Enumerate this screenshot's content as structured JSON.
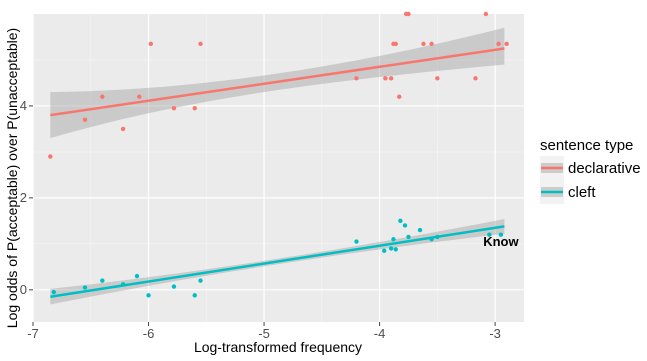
{
  "chart_data": {
    "type": "scatter",
    "xlabel": "Log-transformed frequency",
    "ylabel": "Log odds of P(acceptable) over P(unacceptable)",
    "xlim": [
      -7,
      -2.75
    ],
    "ylim": [
      -0.7,
      6
    ],
    "x_ticks": [
      -7,
      -6,
      -5,
      -4,
      -3
    ],
    "y_ticks": [
      0,
      2,
      4
    ],
    "grid": true,
    "legend": {
      "title": "sentence type",
      "placement": "right",
      "entries": [
        "declarative",
        "cleft"
      ]
    },
    "annotations": [
      {
        "text": "Know",
        "x": -2.95,
        "y": 0.95
      }
    ],
    "series": [
      {
        "name": "declarative",
        "color": "#f8766d",
        "points": [
          [
            -6.85,
            2.9
          ],
          [
            -6.55,
            3.7
          ],
          [
            -6.4,
            4.2
          ],
          [
            -6.22,
            3.5
          ],
          [
            -6.08,
            4.2
          ],
          [
            -5.98,
            5.35
          ],
          [
            -5.78,
            3.95
          ],
          [
            -5.6,
            3.95
          ],
          [
            -5.55,
            5.35
          ],
          [
            -4.2,
            4.6
          ],
          [
            -3.95,
            4.6
          ],
          [
            -3.9,
            4.6
          ],
          [
            -3.88,
            5.35
          ],
          [
            -3.86,
            5.35
          ],
          [
            -3.83,
            4.2
          ],
          [
            -3.77,
            6.0
          ],
          [
            -3.75,
            6.0
          ],
          [
            -3.62,
            5.35
          ],
          [
            -3.55,
            5.35
          ],
          [
            -3.5,
            4.6
          ],
          [
            -3.17,
            4.6
          ],
          [
            -3.08,
            6.0
          ],
          [
            -2.97,
            5.35
          ],
          [
            -2.9,
            5.35
          ]
        ],
        "fit": {
          "x": [
            -6.85,
            -2.92
          ],
          "y": [
            3.8,
            5.25
          ]
        },
        "ci_lower": [
          3.3,
          4.9
        ],
        "ci_upper": [
          4.3,
          5.7
        ],
        "ci_mid_width": 0.18
      },
      {
        "name": "cleft",
        "color": "#00bfc4",
        "points": [
          [
            -6.82,
            -0.05
          ],
          [
            -6.55,
            0.05
          ],
          [
            -6.4,
            0.2
          ],
          [
            -6.22,
            0.12
          ],
          [
            -6.1,
            0.3
          ],
          [
            -6.0,
            -0.12
          ],
          [
            -5.78,
            0.07
          ],
          [
            -5.6,
            -0.12
          ],
          [
            -5.55,
            0.2
          ],
          [
            -4.2,
            1.05
          ],
          [
            -3.96,
            0.85
          ],
          [
            -3.9,
            0.9
          ],
          [
            -3.88,
            1.1
          ],
          [
            -3.86,
            0.88
          ],
          [
            -3.82,
            1.5
          ],
          [
            -3.78,
            1.4
          ],
          [
            -3.75,
            1.15
          ],
          [
            -3.65,
            1.3
          ],
          [
            -3.55,
            1.1
          ],
          [
            -3.5,
            1.15
          ],
          [
            -3.05,
            1.2
          ],
          [
            -2.95,
            1.2
          ]
        ],
        "fit": {
          "x": [
            -6.85,
            -2.92
          ],
          "y": [
            -0.15,
            1.38
          ]
        },
        "ci_lower": [
          -0.32,
          1.22
        ],
        "ci_upper": [
          0.02,
          1.54
        ],
        "ci_mid_width": 0.06
      }
    ]
  }
}
